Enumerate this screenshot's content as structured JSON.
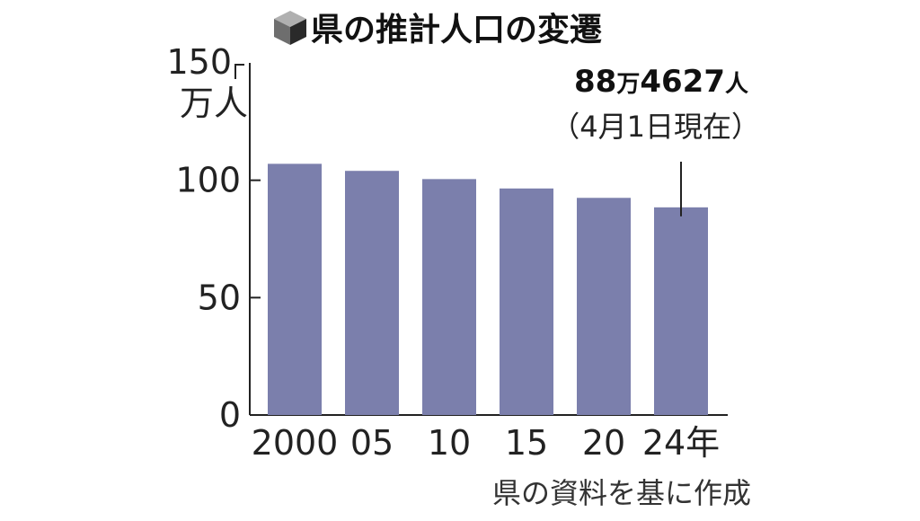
{
  "title": "県の推計人口の変遷",
  "icon": "cube-icon",
  "chart_data": {
    "type": "bar",
    "categories": [
      "2000",
      "05",
      "10",
      "15",
      "20",
      "24年"
    ],
    "values": [
      107,
      104,
      100.5,
      96.5,
      92.5,
      88.4627
    ],
    "unit_number": "150",
    "unit_label": "万人",
    "y_ticks": [
      "0",
      "50",
      "100"
    ],
    "ylim": [
      0,
      150
    ],
    "grid": false,
    "bar_color": "#7b7fac",
    "annotation": {
      "num1": "88",
      "unit1": "万",
      "num2": "4627",
      "unit2": "人",
      "note": "（4月1日現在）",
      "target_category": "24年"
    }
  },
  "source": "県の資料を基に作成"
}
